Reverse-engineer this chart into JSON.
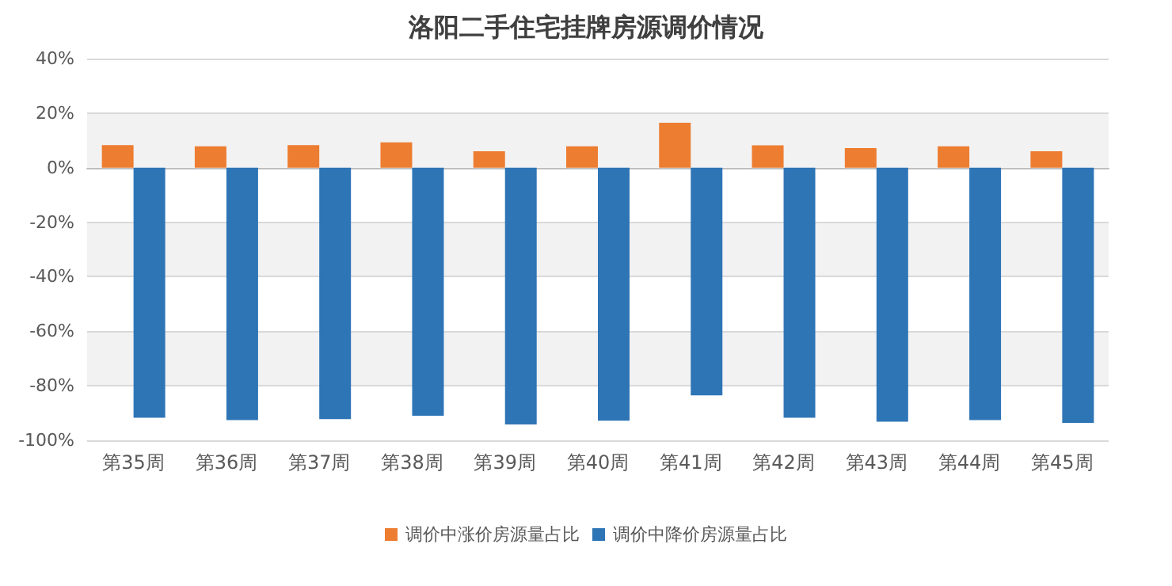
{
  "chart_data": {
    "type": "bar",
    "title": "洛阳二手住宅挂牌房源调价情况",
    "categories": [
      "第35周",
      "第36周",
      "第37周",
      "第38周",
      "第39周",
      "第40周",
      "第41周",
      "第42周",
      "第43周",
      "第44周",
      "第45周"
    ],
    "series": [
      {
        "name": "调价中涨价房源量占比",
        "color": "#ed7d31",
        "values": [
          8.3,
          7.8,
          8.3,
          9.3,
          6.0,
          7.8,
          16.5,
          8.2,
          7.2,
          7.8,
          6.0
        ]
      },
      {
        "name": "调价中降价房源量占比",
        "color": "#2e75b6",
        "values": [
          -91.7,
          -92.6,
          -92.2,
          -91.0,
          -94.2,
          -92.8,
          -83.5,
          -91.7,
          -93.2,
          -92.6,
          -93.6
        ]
      }
    ],
    "ylim": [
      -100,
      40
    ],
    "yticks": [
      {
        "value": -100,
        "label": "-100%"
      },
      {
        "value": -80,
        "label": "-80%"
      },
      {
        "value": -60,
        "label": "-60%"
      },
      {
        "value": -40,
        "label": "-40%"
      },
      {
        "value": -20,
        "label": "-20%"
      },
      {
        "value": 0,
        "label": "0%"
      },
      {
        "value": 20,
        "label": "20%"
      },
      {
        "value": 40,
        "label": "40%"
      }
    ],
    "grid": "y",
    "legend": "bottom"
  }
}
